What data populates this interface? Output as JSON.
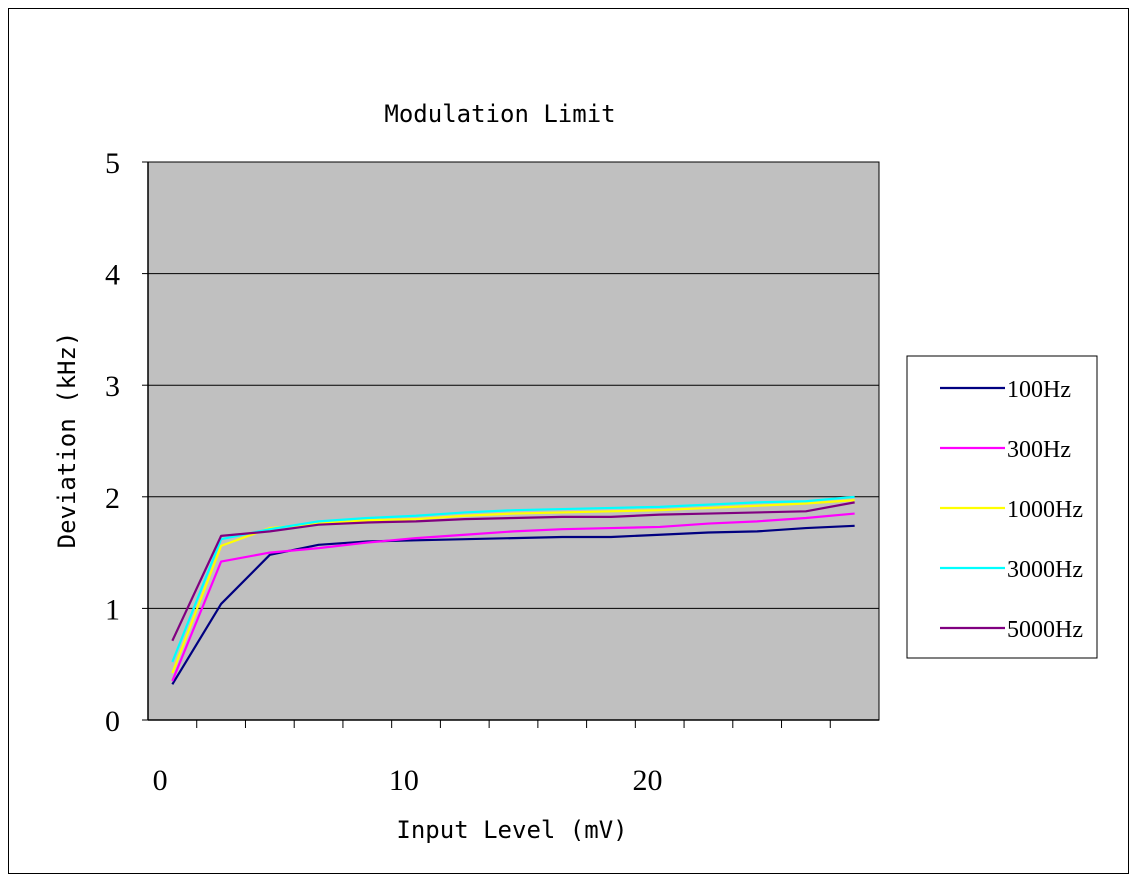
{
  "chart_data": {
    "type": "line",
    "title": "Modulation Limit",
    "xlabel": "Input Level (mV)",
    "ylabel": "Deviation (kHz)",
    "xlim": [
      -0.5,
      29.5
    ],
    "ylim": [
      0,
      5
    ],
    "x_ticks": [
      0,
      10,
      20
    ],
    "y_ticks": [
      0,
      1,
      2,
      3,
      4,
      5
    ],
    "grid": "horizontal",
    "legend": "right",
    "x": [
      0.5,
      2.5,
      4.5,
      6.5,
      8.5,
      10.5,
      12.5,
      14.5,
      16.5,
      18.5,
      20.5,
      22.5,
      24.5,
      26.5,
      28.5
    ],
    "series": [
      {
        "name": "100Hz",
        "color": "#000080",
        "values": [
          0.32,
          1.04,
          1.48,
          1.57,
          1.6,
          1.61,
          1.62,
          1.63,
          1.64,
          1.64,
          1.66,
          1.68,
          1.69,
          1.72,
          1.74
        ]
      },
      {
        "name": "300Hz",
        "color": "#ff00ff",
        "values": [
          0.35,
          1.42,
          1.5,
          1.54,
          1.59,
          1.63,
          1.66,
          1.69,
          1.71,
          1.72,
          1.73,
          1.76,
          1.78,
          1.81,
          1.85
        ]
      },
      {
        "name": "1000Hz",
        "color": "#ffff00",
        "values": [
          0.42,
          1.56,
          1.72,
          1.76,
          1.79,
          1.8,
          1.83,
          1.85,
          1.86,
          1.87,
          1.88,
          1.9,
          1.92,
          1.94,
          1.97
        ]
      },
      {
        "name": "3000Hz",
        "color": "#00ffff",
        "values": [
          0.52,
          1.62,
          1.71,
          1.78,
          1.81,
          1.83,
          1.86,
          1.88,
          1.89,
          1.9,
          1.91,
          1.93,
          1.95,
          1.96,
          2.0
        ]
      },
      {
        "name": "5000Hz",
        "color": "#800080",
        "values": [
          0.71,
          1.65,
          1.69,
          1.75,
          1.77,
          1.78,
          1.8,
          1.81,
          1.82,
          1.82,
          1.84,
          1.85,
          1.86,
          1.87,
          1.95
        ]
      }
    ]
  },
  "style": {
    "plot_bg": "#c0c0c0",
    "gridline": "#000000"
  }
}
